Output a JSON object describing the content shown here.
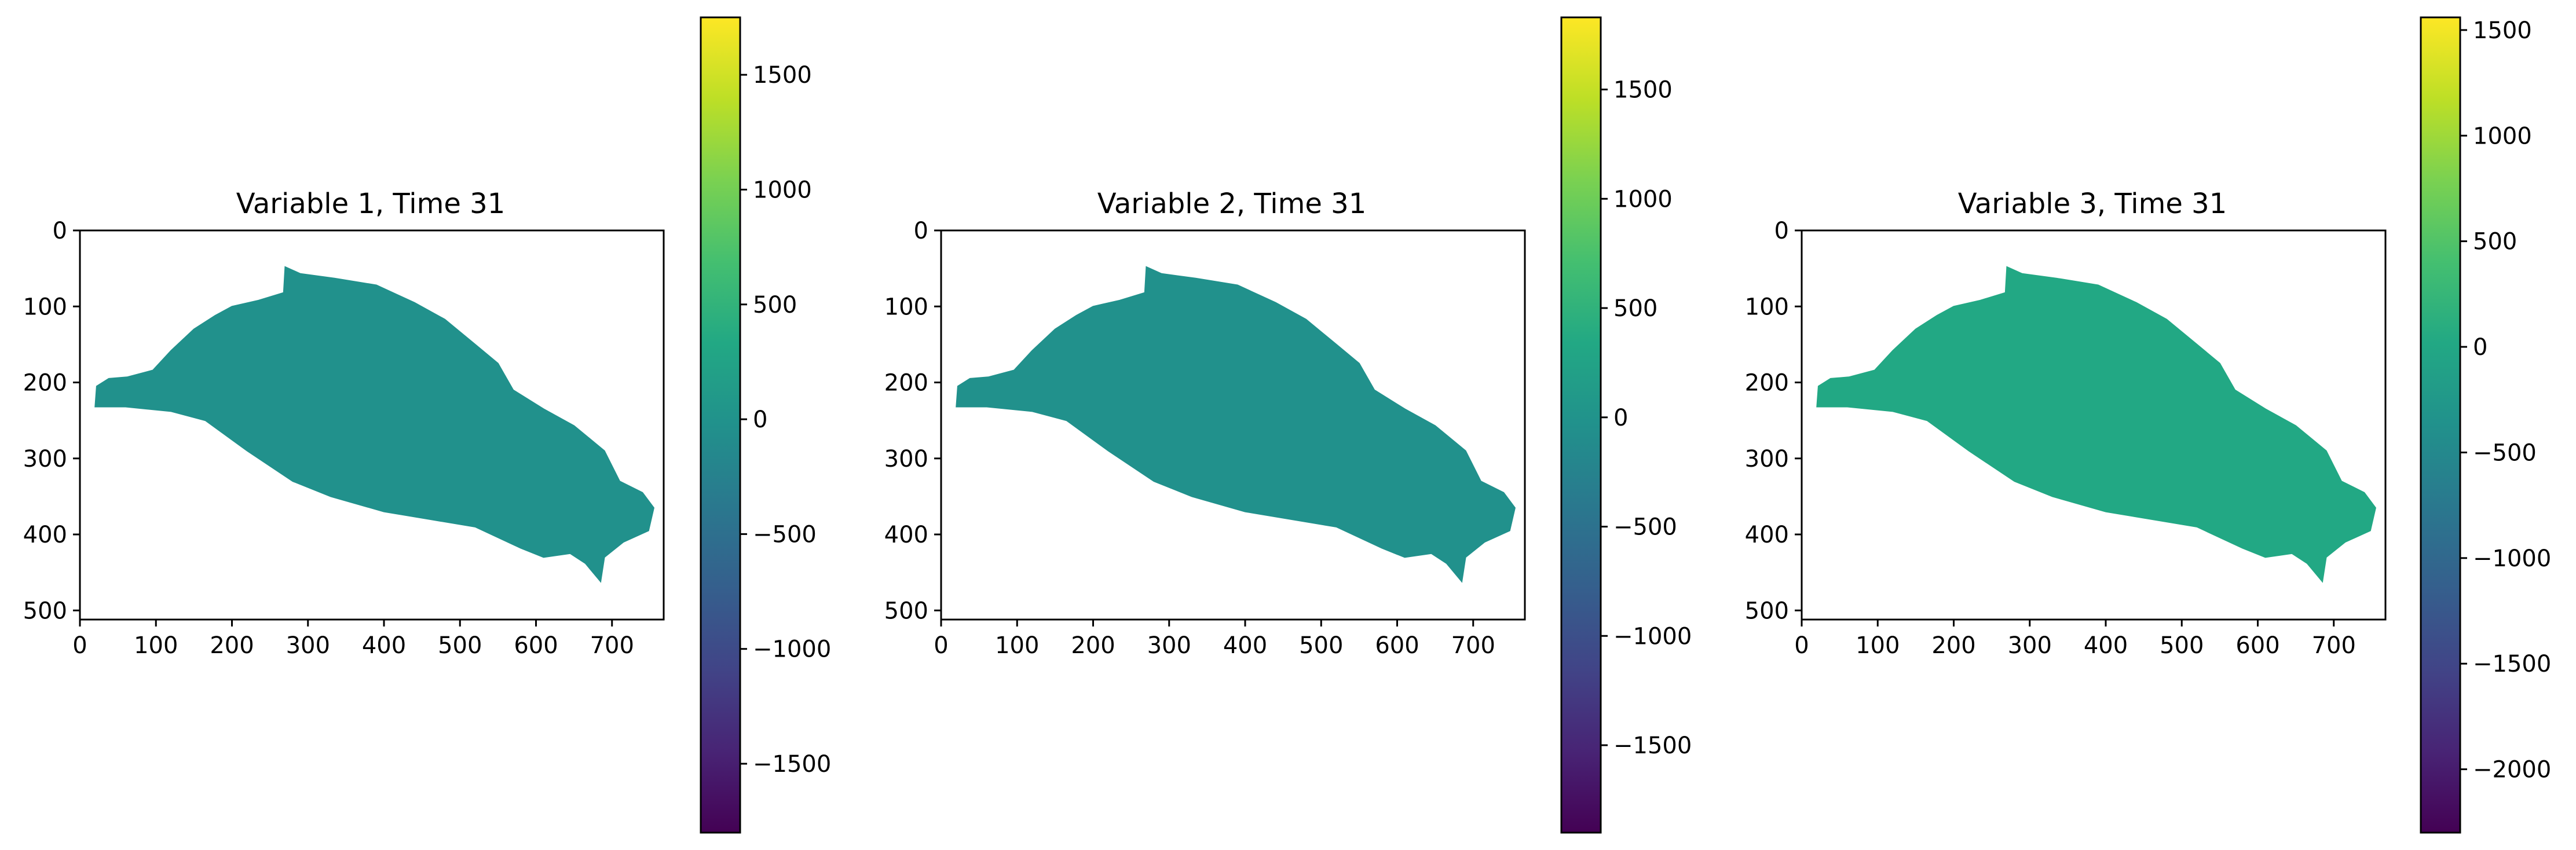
{
  "figure": {
    "background": "#ffffff"
  },
  "chart_data": [
    {
      "type": "heatmap",
      "title": "Variable 1, Time 31",
      "xlabel": "",
      "ylabel": "",
      "xlim": [
        0,
        768
      ],
      "ylim": [
        512,
        0
      ],
      "xticks": [
        0,
        100,
        200,
        300,
        400,
        500,
        600,
        700
      ],
      "yticks": [
        0,
        100,
        200,
        300,
        400,
        500
      ],
      "colormap": "viridis",
      "colorbar": {
        "vmin": -1800,
        "vmax": 1750,
        "ticks": [
          -1500,
          -1000,
          -500,
          0,
          500,
          1000,
          1500
        ]
      },
      "field_mean": 0
    },
    {
      "type": "heatmap",
      "title": "Variable 2, Time 31",
      "xlabel": "",
      "ylabel": "",
      "xlim": [
        0,
        768
      ],
      "ylim": [
        512,
        0
      ],
      "xticks": [
        0,
        100,
        200,
        300,
        400,
        500,
        600,
        700
      ],
      "yticks": [
        0,
        100,
        200,
        300,
        400,
        500
      ],
      "colormap": "viridis",
      "colorbar": {
        "vmin": -1900,
        "vmax": 1830,
        "ticks": [
          -1500,
          -1000,
          -500,
          0,
          500,
          1000,
          1500
        ]
      },
      "field_mean": 0
    },
    {
      "type": "heatmap",
      "title": "Variable 3, Time 31",
      "xlabel": "",
      "ylabel": "",
      "xlim": [
        0,
        768
      ],
      "ylim": [
        512,
        0
      ],
      "xticks": [
        0,
        100,
        200,
        300,
        400,
        500,
        600,
        700
      ],
      "yticks": [
        0,
        100,
        200,
        300,
        400,
        500
      ],
      "colormap": "viridis",
      "colorbar": {
        "vmin": -2300,
        "vmax": 1560,
        "ticks": [
          -2000,
          -1500,
          -1000,
          -500,
          0,
          500,
          1000,
          1500
        ]
      },
      "field_mean": 0
    }
  ],
  "island_outline": [
    [
      20,
      232
    ],
    [
      22,
      205
    ],
    [
      38,
      195
    ],
    [
      62,
      193
    ],
    [
      96,
      184
    ],
    [
      120,
      158
    ],
    [
      150,
      130
    ],
    [
      178,
      112
    ],
    [
      200,
      100
    ],
    [
      235,
      92
    ],
    [
      268,
      82
    ],
    [
      270,
      48
    ],
    [
      290,
      57
    ],
    [
      335,
      63
    ],
    [
      390,
      72
    ],
    [
      440,
      95
    ],
    [
      480,
      117
    ],
    [
      520,
      150
    ],
    [
      550,
      175
    ],
    [
      570,
      210
    ],
    [
      610,
      235
    ],
    [
      650,
      257
    ],
    [
      690,
      290
    ],
    [
      710,
      330
    ],
    [
      740,
      345
    ],
    [
      755,
      365
    ],
    [
      748,
      395
    ],
    [
      715,
      410
    ],
    [
      690,
      430
    ],
    [
      685,
      462
    ],
    [
      665,
      438
    ],
    [
      645,
      425
    ],
    [
      610,
      430
    ],
    [
      580,
      418
    ],
    [
      520,
      390
    ],
    [
      460,
      380
    ],
    [
      400,
      370
    ],
    [
      330,
      350
    ],
    [
      280,
      330
    ],
    [
      220,
      290
    ],
    [
      165,
      250
    ],
    [
      120,
      238
    ],
    [
      60,
      232
    ],
    [
      20,
      232
    ]
  ]
}
